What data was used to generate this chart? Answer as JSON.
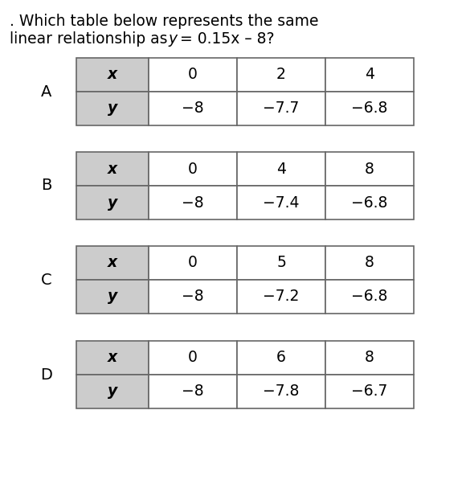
{
  "title_line1": ". Which table below represents the same",
  "title_line2_pre": "linear relationship as ",
  "title_line2_y": "y",
  "title_line2_post": " = 0.15x – 8?",
  "background_color": "#ffffff",
  "header_bg": "#cccccc",
  "cell_bg": "#ffffff",
  "border_color": "#666666",
  "tables": [
    {
      "label": "A",
      "x_vals": [
        "0",
        "2",
        "4"
      ],
      "y_vals": [
        "−8",
        "−7.7",
        "−6.8"
      ]
    },
    {
      "label": "B",
      "x_vals": [
        "0",
        "4",
        "8"
      ],
      "y_vals": [
        "−8",
        "−7.4",
        "−6.8"
      ]
    },
    {
      "label": "C",
      "x_vals": [
        "0",
        "5",
        "8"
      ],
      "y_vals": [
        "−8",
        "−7.2",
        "−6.8"
      ]
    },
    {
      "label": "D",
      "x_vals": [
        "0",
        "6",
        "8"
      ],
      "y_vals": [
        "−8",
        "−7.8",
        "−6.7"
      ]
    }
  ],
  "title_fontsize": 13.5,
  "table_fontsize": 13.5,
  "label_fontsize": 14
}
